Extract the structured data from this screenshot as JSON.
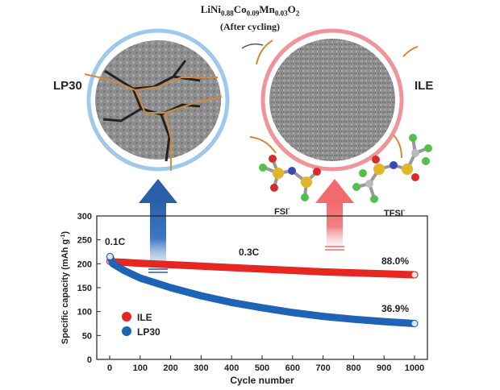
{
  "header": {
    "formula": [
      {
        "t": "LiNi",
        "sub": false
      },
      {
        "t": "0.88",
        "sub": true
      },
      {
        "t": "Co",
        "sub": false
      },
      {
        "t": "0.09",
        "sub": true
      },
      {
        "t": "Mn",
        "sub": false
      },
      {
        "t": "0.03",
        "sub": true
      },
      {
        "t": "O",
        "sub": false
      },
      {
        "t": "2",
        "sub": true
      }
    ],
    "subtitle": "(After cycling)"
  },
  "illustration": {
    "left_label": "LP30",
    "right_label": "ILE",
    "anion_left": "FSI",
    "anion_right": "TFSI",
    "anion_charge": "-",
    "colors": {
      "blue_ring": "#9ec9ec",
      "red_ring": "#f0949a",
      "blue_arrow": "#3f77c4",
      "red_arrow": "#f07f82",
      "particle": "#8f8f8f",
      "crack": "#d18a3c"
    }
  },
  "chart_data": {
    "type": "line",
    "xlabel": "Cycle number",
    "ylabel": "Specific capacity (mAh g",
    "ylabel_sup": "-1",
    "ylabel_close": ")",
    "xlim": [
      0,
      1000
    ],
    "ylim": [
      0,
      300
    ],
    "x_ticks": [
      0,
      100,
      200,
      300,
      400,
      500,
      600,
      700,
      800,
      900,
      1000
    ],
    "y_ticks": [
      0,
      50,
      100,
      150,
      200,
      250,
      300
    ],
    "series": [
      {
        "name": "ILE",
        "color": "#e52621",
        "x": [
          1,
          10,
          50,
          100,
          200,
          300,
          400,
          500,
          600,
          700,
          800,
          900,
          1000
        ],
        "values": [
          205,
          204,
          203,
          201,
          198,
          195,
          192,
          189,
          186,
          183,
          181,
          179,
          177
        ],
        "retention_label": "88.0%"
      },
      {
        "name": "LP30",
        "color": "#1f63b5",
        "x": [
          1,
          10,
          50,
          100,
          200,
          300,
          400,
          500,
          600,
          700,
          800,
          900,
          1000
        ],
        "values": [
          215,
          200,
          185,
          170,
          150,
          133,
          119,
          108,
          98,
          90,
          84,
          79,
          75
        ],
        "retention_label": "36.9%"
      }
    ],
    "annotations": [
      "0.1C",
      "0.3C"
    ],
    "legend_position": "bottom-left",
    "grid": false
  }
}
